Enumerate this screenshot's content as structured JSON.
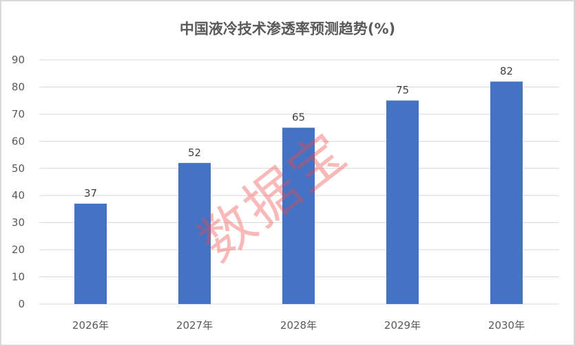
{
  "chart_data": {
    "type": "bar",
    "title": "中国液冷技术渗透率预测趋势(%)",
    "categories": [
      "2026年",
      "2027年",
      "2028年",
      "2029年",
      "2030年"
    ],
    "values": [
      37,
      52,
      65,
      75,
      82
    ],
    "data_labels": [
      "37",
      "52",
      "65",
      "75",
      "82"
    ],
    "xlabel": "",
    "ylabel": "",
    "ylim": [
      0,
      90
    ],
    "yticks": [
      "0",
      "10",
      "20",
      "30",
      "40",
      "50",
      "60",
      "70",
      "80",
      "90"
    ],
    "grid": true,
    "legend": "none",
    "bar_color": "#4472C4",
    "watermark": "数据宝"
  }
}
